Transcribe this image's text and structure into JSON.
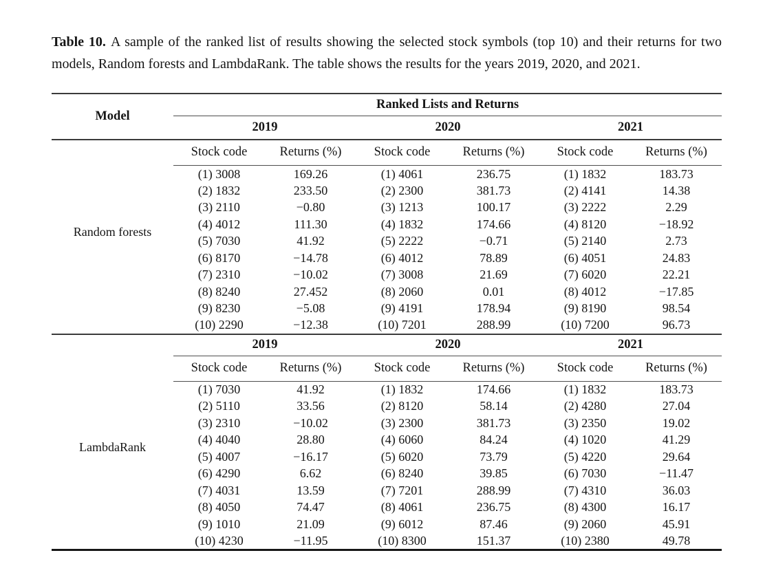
{
  "page": {
    "background": "#ffffff",
    "text_color": "#151515"
  },
  "caption": {
    "label": "Table 10.",
    "text": "A sample of the ranked list of results showing the selected stock symbols (top 10) and their returns for two models, Random forests and LambdaRank. The table shows the results for the years 2019, 2020, and 2021."
  },
  "table": {
    "model_header": "Model",
    "group_header": "Ranked Lists and Returns",
    "years": [
      "2019",
      "2020",
      "2021"
    ],
    "col_headers": [
      "Stock code",
      "Returns (%)"
    ],
    "sections": [
      {
        "model": "Random forests",
        "rows": [
          [
            "(1) 3008",
            "169.26",
            "(1) 4061",
            "236.75",
            "(1) 1832",
            "183.73"
          ],
          [
            "(2) 1832",
            "233.50",
            "(2) 2300",
            "381.73",
            "(2) 4141",
            "14.38"
          ],
          [
            "(3) 2110",
            "−0.80",
            "(3) 1213",
            "100.17",
            "(3) 2222",
            "2.29"
          ],
          [
            "(4) 4012",
            "111.30",
            "(4) 1832",
            "174.66",
            "(4) 8120",
            "−18.92"
          ],
          [
            "(5) 7030",
            "41.92",
            "(5) 2222",
            "−0.71",
            "(5) 2140",
            "2.73"
          ],
          [
            "(6) 8170",
            "−14.78",
            "(6) 4012",
            "78.89",
            "(6) 4051",
            "24.83"
          ],
          [
            "(7) 2310",
            "−10.02",
            "(7) 3008",
            "21.69",
            "(7) 6020",
            "22.21"
          ],
          [
            "(8) 8240",
            "27.452",
            "(8) 2060",
            "0.01",
            "(8) 4012",
            "−17.85"
          ],
          [
            "(9) 8230",
            "−5.08",
            "(9) 4191",
            "178.94",
            "(9) 8190",
            "98.54"
          ],
          [
            "(10) 2290",
            "−12.38",
            "(10) 7201",
            "288.99",
            "(10) 7200",
            "96.73"
          ]
        ]
      },
      {
        "model": "LambdaRank",
        "rows": [
          [
            "(1) 7030",
            "41.92",
            "(1) 1832",
            "174.66",
            "(1) 1832",
            "183.73"
          ],
          [
            "(2) 5110",
            "33.56",
            "(2) 8120",
            "58.14",
            "(2) 4280",
            "27.04"
          ],
          [
            "(3) 2310",
            "−10.02",
            "(3) 2300",
            "381.73",
            "(3) 2350",
            "19.02"
          ],
          [
            "(4) 4040",
            "28.80",
            "(4) 6060",
            "84.24",
            "(4) 1020",
            "41.29"
          ],
          [
            "(5) 4007",
            "−16.17",
            "(5) 6020",
            "73.79",
            "(5) 4220",
            "29.64"
          ],
          [
            "(6) 4290",
            "6.62",
            "(6) 8240",
            "39.85",
            "(6) 7030",
            "−11.47"
          ],
          [
            "(7) 4031",
            "13.59",
            "(7) 7201",
            "288.99",
            "(7) 4310",
            "36.03"
          ],
          [
            "(8) 4050",
            "74.47",
            "(8) 4061",
            "236.75",
            "(8) 4300",
            "16.17"
          ],
          [
            "(9) 1010",
            "21.09",
            "(9) 6012",
            "87.46",
            "(9) 2060",
            "45.91"
          ],
          [
            "(10) 4230",
            "−11.95",
            "(10) 8300",
            "151.37",
            "(10) 2380",
            "49.78"
          ]
        ]
      }
    ]
  }
}
